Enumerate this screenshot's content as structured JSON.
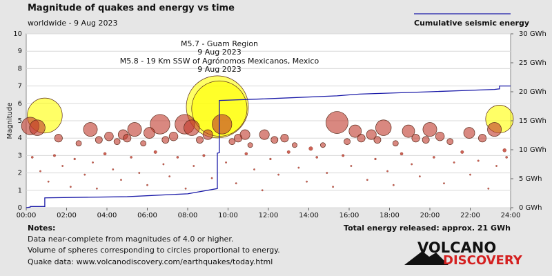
{
  "chart_data": {
    "type": "scatter",
    "title": "Magnitude of quakes and energy vs time",
    "subtitle": "worldwide -  9 Aug 2023",
    "y_label": "Magnitude",
    "xlim": [
      0,
      24
    ],
    "xticks": [
      {
        "value": 0,
        "label": "00:00"
      },
      {
        "value": 2,
        "label": "02:00"
      },
      {
        "value": 4,
        "label": "04:00"
      },
      {
        "value": 6,
        "label": "06:00"
      },
      {
        "value": 8,
        "label": "08:00"
      },
      {
        "value": 10,
        "label": "10:00"
      },
      {
        "value": 12,
        "label": "12:00"
      },
      {
        "value": 14,
        "label": "14:00"
      },
      {
        "value": 16,
        "label": "16:00"
      },
      {
        "value": 18,
        "label": "18:00"
      },
      {
        "value": 20,
        "label": "20:00"
      },
      {
        "value": 22,
        "label": "22:00"
      },
      {
        "value": 24,
        "label": "24:00"
      }
    ],
    "ylim": [
      0,
      10
    ],
    "yticks": [
      0,
      1,
      2,
      3,
      4,
      5,
      6,
      7,
      8,
      9,
      10
    ],
    "y2lim": [
      0,
      30
    ],
    "y2ticks": [
      {
        "value": 0,
        "label": "0 GWh"
      },
      {
        "value": 5,
        "label": "5 GWh"
      },
      {
        "value": 10,
        "label": "10 GWh"
      },
      {
        "value": 15,
        "label": "15 GWh"
      },
      {
        "value": 20,
        "label": "20 GWh"
      },
      {
        "value": 25,
        "label": "25 GWh"
      },
      {
        "value": 30,
        "label": "30 GWh"
      }
    ],
    "grid": true,
    "series": [
      {
        "color": "#ffff00",
        "x": [
          0.92,
          9.47,
          9.57,
          23.45
        ],
        "y": [
          5.3,
          5.8,
          5.7,
          5.1
        ]
      },
      {
        "color": "#c0392b",
        "x": [
          0.2,
          0.55,
          3.18,
          4.8,
          5.37,
          6.1,
          6.63,
          7.86,
          8.2,
          9.7,
          10.84,
          11.8,
          15.4,
          16.3,
          17.1,
          17.7,
          18.94,
          20.0,
          21.95,
          23.2,
          1.6,
          2.6,
          3.6,
          4.1,
          4.5,
          5.0,
          5.8,
          6.9,
          7.3,
          8.6,
          9.0,
          10.2,
          10.5,
          11.1,
          12.3,
          12.8,
          13.3,
          14.1,
          14.7,
          15.9,
          16.6,
          17.4,
          18.3,
          19.3,
          19.8,
          20.5,
          21.0,
          22.6,
          23.7,
          0.3,
          0.7,
          1.1,
          1.4,
          1.8,
          2.2,
          2.4,
          2.9,
          3.3,
          3.5,
          3.9,
          4.3,
          4.7,
          5.2,
          5.6,
          6.0,
          6.4,
          6.8,
          7.1,
          7.5,
          7.9,
          8.3,
          8.8,
          9.2,
          9.9,
          10.4,
          10.9,
          11.3,
          11.7,
          12.1,
          12.5,
          13.0,
          13.5,
          13.9,
          14.4,
          14.9,
          15.2,
          15.7,
          16.1,
          16.9,
          17.3,
          17.9,
          18.2,
          18.6,
          19.1,
          19.5,
          20.2,
          20.7,
          21.2,
          21.6,
          22.0,
          22.4,
          22.9,
          23.3,
          23.8
        ],
        "y": [
          4.7,
          4.6,
          4.5,
          4.2,
          4.5,
          4.3,
          4.8,
          4.8,
          4.6,
          4.8,
          4.2,
          4.2,
          4.9,
          4.4,
          4.2,
          4.6,
          4.4,
          4.5,
          4.3,
          4.5,
          4.0,
          3.7,
          3.9,
          4.1,
          3.8,
          4.0,
          3.7,
          3.9,
          4.1,
          3.9,
          4.2,
          3.8,
          4.0,
          3.6,
          3.9,
          4.0,
          3.6,
          3.4,
          3.6,
          3.8,
          4.0,
          3.9,
          3.7,
          4.0,
          3.9,
          4.1,
          3.8,
          4.0,
          3.3,
          2.9,
          2.1,
          1.5,
          3.0,
          2.4,
          1.2,
          2.8,
          1.9,
          2.6,
          1.1,
          3.1,
          2.2,
          1.6,
          2.9,
          2.0,
          1.3,
          3.2,
          2.5,
          1.8,
          2.9,
          1.1,
          2.4,
          3.0,
          1.7,
          2.6,
          1.4,
          3.1,
          2.2,
          1.0,
          2.8,
          1.9,
          3.2,
          2.3,
          1.5,
          2.9,
          2.0,
          1.2,
          3.0,
          2.4,
          1.6,
          2.8,
          2.1,
          1.3,
          3.1,
          2.5,
          1.8,
          2.9,
          1.4,
          2.6,
          3.2,
          1.9,
          2.7,
          1.1,
          2.4,
          2.9
        ]
      },
      {
        "name": "Cumulative seismic energy",
        "type": "line",
        "axis": "y2",
        "color": "#1a1aa8",
        "x": [
          0,
          0.2,
          0.2,
          0.92,
          0.92,
          5,
          8,
          9.47,
          9.47,
          9.57,
          9.57,
          12,
          15.4,
          16.5,
          20,
          23.2,
          23.45,
          23.45,
          24
        ],
        "y": [
          0,
          0.1,
          0.2,
          0.2,
          1.7,
          1.9,
          2.4,
          3.3,
          9.4,
          9.5,
          18.5,
          18.8,
          19.3,
          19.6,
          20.0,
          20.4,
          20.5,
          21.0,
          21.0
        ]
      }
    ],
    "annotations": [
      "M5.7 - Guam Region",
      "9 Aug 2023",
      "M5.8 - 19 Km SSW of Agrónomos Mexicanos, Mexico",
      "9 Aug 2023"
    ],
    "total": "Total energy released: approx. 21 GWh",
    "notes_title": "Notes:",
    "notes": [
      "Data near-complete from magnitudes of 4.0 or higher.",
      "Volume of spheres corresponding to circles proportional to energy.",
      "Quake data: www.volcanodiscovery.com/earthquakes/today.html"
    ],
    "logo": [
      "VOLCANO",
      "DISCOVERY"
    ]
  }
}
